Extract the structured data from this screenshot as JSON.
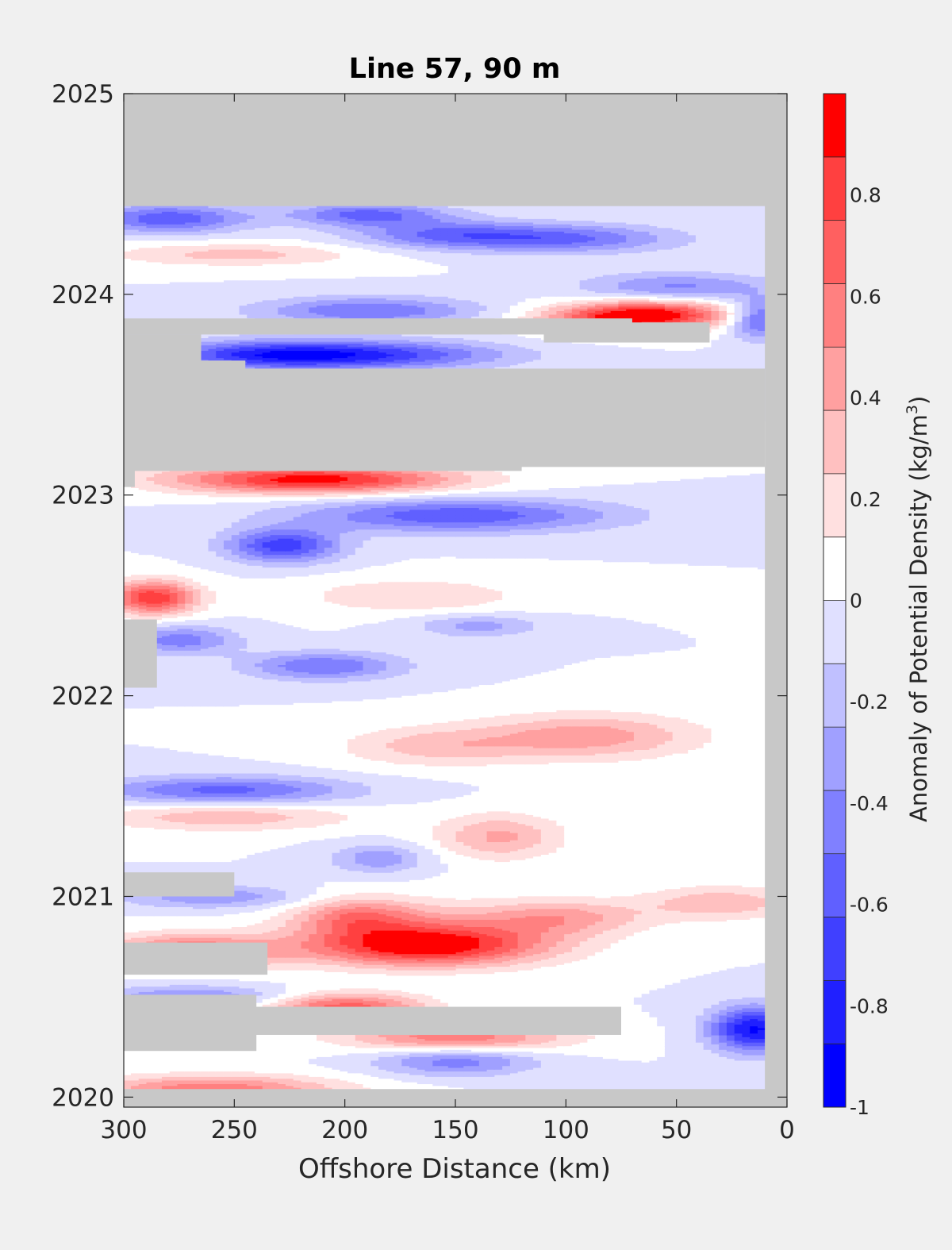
{
  "chart_data": {
    "type": "heatmap",
    "title": "Line 57, 90 m",
    "xlabel": "Offshore Distance (km)",
    "ylabel": "",
    "xlim": [
      300,
      0
    ],
    "ylim": [
      2019.95,
      2025
    ],
    "x_ticks": [
      300,
      250,
      200,
      150,
      100,
      50,
      0
    ],
    "x_tick_labels": [
      "300",
      "250",
      "200",
      "150",
      "100",
      "50",
      "0"
    ],
    "y_ticks": [
      2020,
      2021,
      2022,
      2023,
      2024,
      2025
    ],
    "y_tick_labels": [
      "2020",
      "2021",
      "2022",
      "2023",
      "2024",
      "2025"
    ],
    "colorbar": {
      "label": "Anomaly of Potential Density (kg/m",
      "label_superscript": "3",
      "label_close": ")",
      "range": [
        -1,
        1
      ],
      "levels": 16,
      "tick_values": [
        -1,
        -0.8,
        -0.6,
        -0.4,
        -0.2,
        0,
        0.2,
        0.4,
        0.6,
        0.8
      ],
      "tick_labels": [
        "-1",
        "-0.8",
        "-0.6",
        "-0.4",
        "-0.2",
        "0",
        "0.2",
        "0.4",
        "0.6",
        "0.8"
      ],
      "colors": [
        "#0000ff",
        "#2020ff",
        "#4040ff",
        "#6060ff",
        "#8080ff",
        "#a0a0ff",
        "#c0c0ff",
        "#e0e0ff",
        "#ffffff",
        "#ffe0e0",
        "#ffc0c0",
        "#ffa0a0",
        "#ff8080",
        "#ff6060",
        "#ff4040",
        "#ff0000"
      ]
    },
    "no_data_color": "#c8c8c8",
    "grid": false,
    "sampled_range": {
      "x": [
        10,
        300
      ],
      "y": [
        2020.04,
        2024.44
      ]
    },
    "no_data_regions": [
      {
        "x": [
          0,
          300
        ],
        "y": [
          2024.44,
          2025
        ]
      },
      {
        "x": [
          0,
          10
        ],
        "y": [
          2019.95,
          2025
        ]
      },
      {
        "x": [
          0,
          300
        ],
        "y": [
          2019.95,
          2020.04
        ]
      },
      {
        "x": [
          10,
          300
        ],
        "y": [
          2023.14,
          2023.63
        ]
      },
      {
        "x": [
          70,
          300
        ],
        "y": [
          2023.8,
          2023.88
        ]
      },
      {
        "x": [
          35,
          110
        ],
        "y": [
          2023.76,
          2023.86
        ]
      },
      {
        "x": [
          265,
          300
        ],
        "y": [
          2023.62,
          2023.8
        ]
      },
      {
        "x": [
          245,
          300
        ],
        "y": [
          2023.62,
          2023.67
        ]
      },
      {
        "x": [
          120,
          300
        ],
        "y": [
          2023.12,
          2023.15
        ]
      },
      {
        "x": [
          295,
          300
        ],
        "y": [
          2023.04,
          2023.13
        ]
      },
      {
        "x": [
          285,
          300
        ],
        "y": [
          2022.04,
          2022.38
        ]
      },
      {
        "x": [
          250,
          300
        ],
        "y": [
          2021.0,
          2021.12
        ]
      },
      {
        "x": [
          235,
          300
        ],
        "y": [
          2020.61,
          2020.77
        ]
      },
      {
        "x": [
          75,
          300
        ],
        "y": [
          2020.31,
          2020.45
        ]
      },
      {
        "x": [
          240,
          300
        ],
        "y": [
          2020.23,
          2020.51
        ]
      }
    ],
    "anomaly_features": [
      {
        "x": 165,
        "y": 2020.75,
        "value": 0.9,
        "sx": 38,
        "sy": 0.07
      },
      {
        "x": 215,
        "y": 2023.08,
        "value": 0.95,
        "sx": 45,
        "sy": 0.05
      },
      {
        "x": 287,
        "y": 2022.49,
        "value": 0.85,
        "sx": 14,
        "sy": 0.06
      },
      {
        "x": 60,
        "y": 2023.9,
        "value": 0.85,
        "sx": 25,
        "sy": 0.05
      },
      {
        "x": 270,
        "y": 2020.73,
        "value": 0.65,
        "sx": 28,
        "sy": 0.06
      },
      {
        "x": 200,
        "y": 2020.45,
        "value": 0.7,
        "sx": 25,
        "sy": 0.05
      },
      {
        "x": 150,
        "y": 2020.3,
        "value": 0.6,
        "sx": 35,
        "sy": 0.05
      },
      {
        "x": 195,
        "y": 2020.9,
        "value": 0.5,
        "sx": 20,
        "sy": 0.07
      },
      {
        "x": 90,
        "y": 2021.8,
        "value": 0.45,
        "sx": 35,
        "sy": 0.08
      },
      {
        "x": 130,
        "y": 2021.3,
        "value": 0.4,
        "sx": 20,
        "sy": 0.08
      },
      {
        "x": 160,
        "y": 2021.75,
        "value": 0.3,
        "sx": 30,
        "sy": 0.07
      },
      {
        "x": 255,
        "y": 2021.4,
        "value": 0.35,
        "sx": 40,
        "sy": 0.05
      },
      {
        "x": 150,
        "y": 2020.85,
        "value": 0.3,
        "sx": 40,
        "sy": 0.09
      },
      {
        "x": 100,
        "y": 2020.9,
        "value": 0.35,
        "sx": 25,
        "sy": 0.06
      },
      {
        "x": 30,
        "y": 2020.97,
        "value": 0.35,
        "sx": 25,
        "sy": 0.06
      },
      {
        "x": 250,
        "y": 2024.2,
        "value": 0.3,
        "sx": 40,
        "sy": 0.04
      },
      {
        "x": 260,
        "y": 2020.04,
        "value": 0.6,
        "sx": 40,
        "sy": 0.05
      },
      {
        "x": 170,
        "y": 2022.5,
        "value": 0.25,
        "sx": 35,
        "sy": 0.06
      },
      {
        "x": 85,
        "y": 2023.88,
        "value": 0.4,
        "sx": 25,
        "sy": 0.05
      },
      {
        "x": 228,
        "y": 2022.75,
        "value": -0.7,
        "sx": 18,
        "sy": 0.06
      },
      {
        "x": 150,
        "y": 2022.9,
        "value": -0.6,
        "sx": 50,
        "sy": 0.06
      },
      {
        "x": 15,
        "y": 2020.34,
        "value": -0.9,
        "sx": 14,
        "sy": 0.08
      },
      {
        "x": 235,
        "y": 2023.7,
        "value": -0.7,
        "sx": 35,
        "sy": 0.05
      },
      {
        "x": 180,
        "y": 2023.7,
        "value": -0.55,
        "sx": 40,
        "sy": 0.05
      },
      {
        "x": 280,
        "y": 2024.38,
        "value": -0.6,
        "sx": 25,
        "sy": 0.05
      },
      {
        "x": 190,
        "y": 2024.4,
        "value": -0.55,
        "sx": 25,
        "sy": 0.04
      },
      {
        "x": 100,
        "y": 2024.28,
        "value": -0.5,
        "sx": 35,
        "sy": 0.05
      },
      {
        "x": 155,
        "y": 2024.3,
        "value": -0.45,
        "sx": 30,
        "sy": 0.05
      },
      {
        "x": 210,
        "y": 2022.15,
        "value": -0.5,
        "sx": 25,
        "sy": 0.05
      },
      {
        "x": 255,
        "y": 2021.53,
        "value": -0.55,
        "sx": 40,
        "sy": 0.05
      },
      {
        "x": 275,
        "y": 2022.28,
        "value": -0.45,
        "sx": 18,
        "sy": 0.05
      },
      {
        "x": 150,
        "y": 2020.18,
        "value": -0.45,
        "sx": 25,
        "sy": 0.05
      },
      {
        "x": 190,
        "y": 2023.92,
        "value": -0.5,
        "sx": 35,
        "sy": 0.05
      },
      {
        "x": 12,
        "y": 2023.88,
        "value": -0.6,
        "sx": 10,
        "sy": 0.07
      },
      {
        "x": 50,
        "y": 2024.04,
        "value": -0.4,
        "sx": 30,
        "sy": 0.05
      },
      {
        "x": 185,
        "y": 2021.19,
        "value": -0.35,
        "sx": 15,
        "sy": 0.05
      },
      {
        "x": 260,
        "y": 2021.0,
        "value": -0.35,
        "sx": 30,
        "sy": 0.04
      },
      {
        "x": 270,
        "y": 2020.5,
        "value": -0.4,
        "sx": 30,
        "sy": 0.04
      },
      {
        "x": 140,
        "y": 2022.35,
        "value": -0.3,
        "sx": 20,
        "sy": 0.04
      }
    ]
  }
}
